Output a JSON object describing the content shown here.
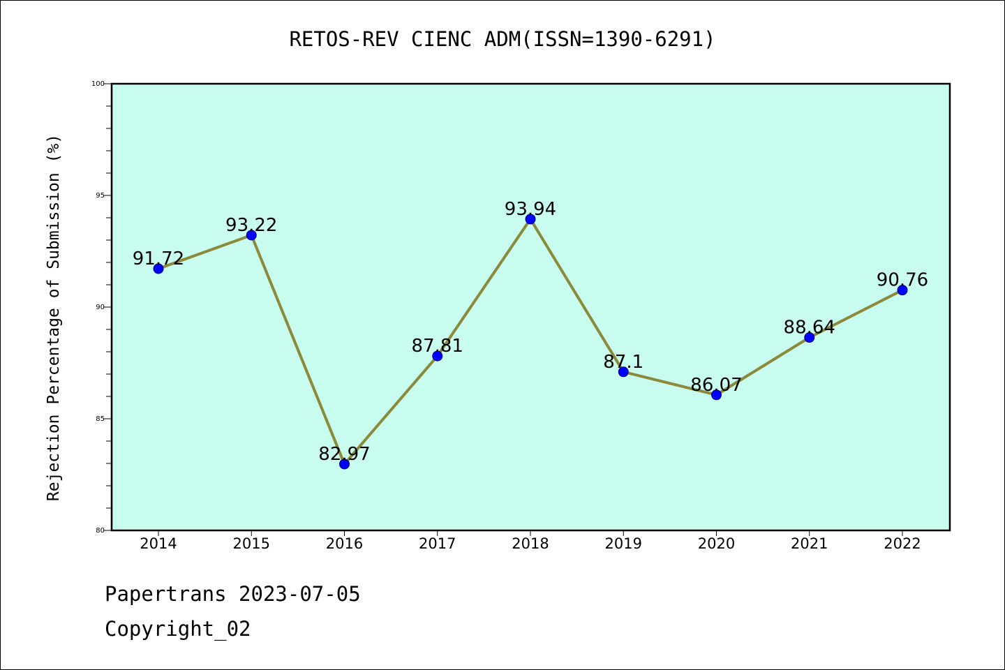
{
  "chart_data": {
    "type": "line",
    "title": "RETOS-REV CIENC ADM(ISSN=1390-6291)",
    "xlabel": "",
    "ylabel": "Rejection Percentage of Submission (%)",
    "categories": [
      "2014",
      "2015",
      "2016",
      "2017",
      "2018",
      "2019",
      "2020",
      "2021",
      "2022"
    ],
    "series": [
      {
        "values": [
          91.72,
          93.22,
          82.97,
          87.81,
          93.94,
          87.1,
          86.07,
          88.64,
          90.76
        ],
        "labels": [
          "91.72",
          "93.22",
          "82.97",
          "87.81",
          "93.94",
          "87.1",
          "86.07",
          "88.64",
          "90.76"
        ]
      }
    ],
    "ylim": [
      80,
      100
    ],
    "yticks": [
      "80",
      "85",
      "90",
      "95",
      "100"
    ],
    "grid": false,
    "legend": "none",
    "colors": {
      "plot_background": "#c8fcee",
      "line": "#8b8a3a",
      "marker": "#0000ff"
    }
  },
  "footer": {
    "line1": "Papertrans 2023-07-05",
    "line2": "Copyright_02"
  }
}
